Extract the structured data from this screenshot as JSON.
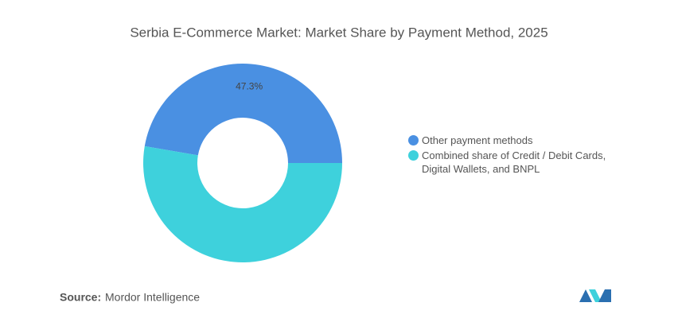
{
  "chart_data": {
    "type": "donut",
    "title": "Serbia E-Commerce Market: Market Share by Payment Method, 2025",
    "categories": [
      "Other payment methods",
      "Combined share of Credit / Debit Cards, Digital Wallets, and BNPL"
    ],
    "values": [
      47.3,
      52.7
    ],
    "value_labels": [
      "47.3%",
      null
    ],
    "colors": [
      "#4a90e2",
      "#3ed1dc"
    ],
    "source_label": "Source:",
    "source": "Mordor Intelligence"
  }
}
